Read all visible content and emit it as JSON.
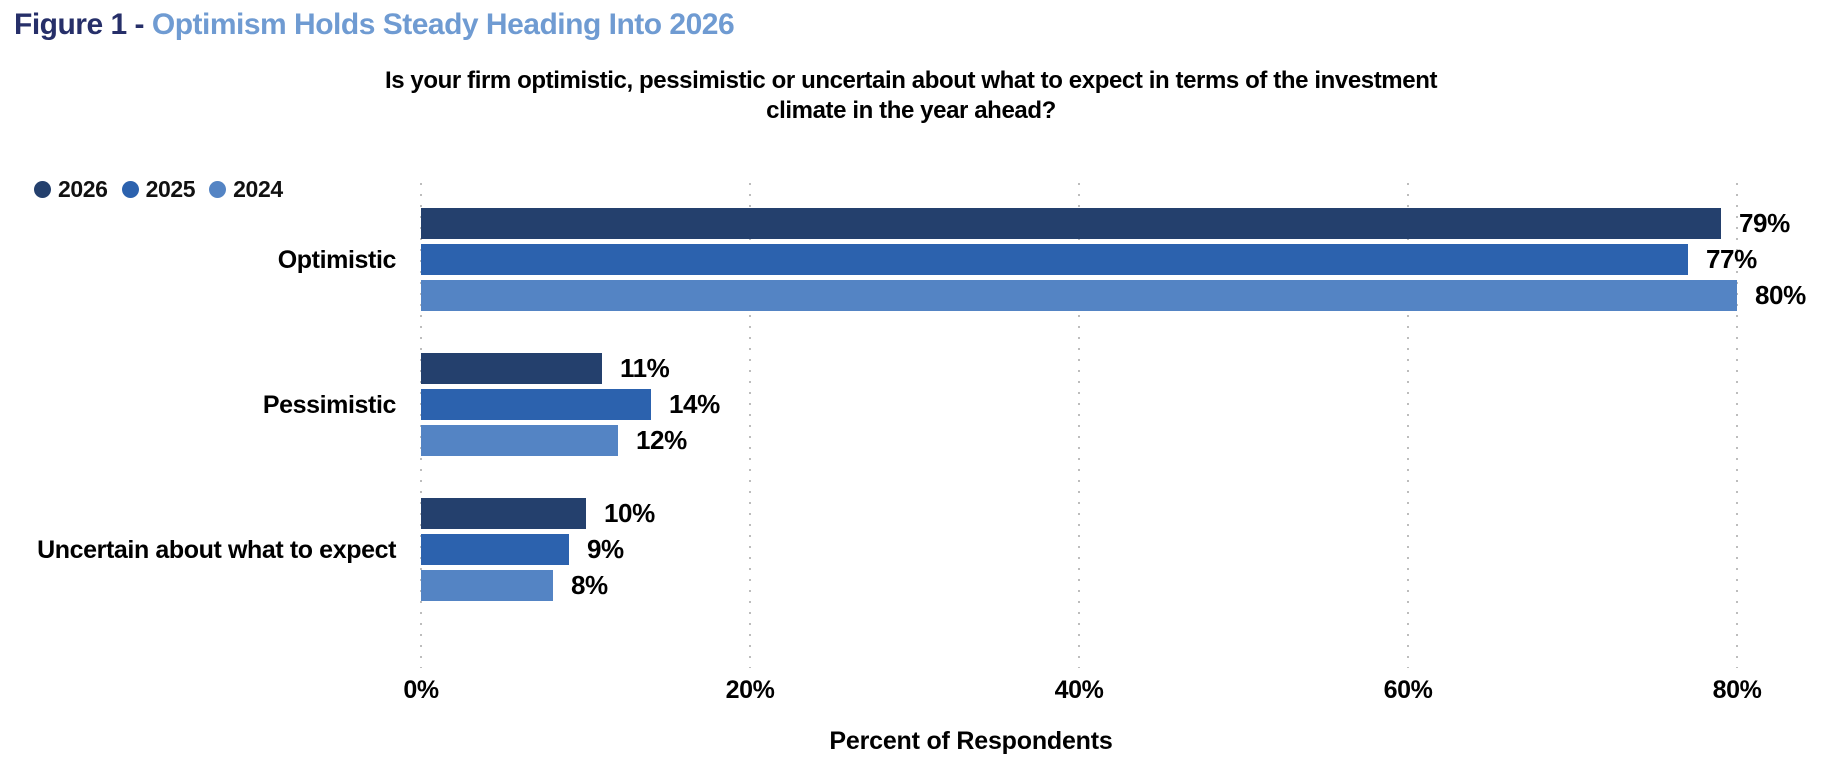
{
  "header": {
    "figure_label": "Figure 1 -",
    "figure_title": "Optimism Holds Steady Heading Into 2026"
  },
  "chart_data": {
    "type": "bar",
    "orientation": "horizontal",
    "title": "Is your firm optimistic, pessimistic or uncertain about what to expect in terms of the investment climate in the year ahead?",
    "title_lines": [
      "Is your firm optimistic, pessimistic or uncertain about what to expect in terms of the investment",
      "climate in the year ahead?"
    ],
    "xlabel": "Percent of Respondents",
    "categories": [
      "Optimistic",
      "Pessimistic",
      "Uncertain about what to expect"
    ],
    "series": [
      {
        "name": "2026",
        "color": "#24406d",
        "values": [
          79,
          11,
          10
        ]
      },
      {
        "name": "2025",
        "color": "#2c62ae",
        "values": [
          77,
          14,
          9
        ]
      },
      {
        "name": "2024",
        "color": "#5484c4",
        "values": [
          80,
          12,
          8
        ]
      }
    ],
    "value_suffix": "%",
    "x_ticks": [
      "0%",
      "20%",
      "40%",
      "60%",
      "80%"
    ],
    "x_tick_values": [
      0,
      20,
      40,
      60,
      80
    ],
    "xlim": [
      0,
      80
    ],
    "grid": "vertical-dotted",
    "legend_position": "top-left"
  },
  "colors": {
    "figure_label": "#262f69",
    "figure_title": "#6f9bd2",
    "text": "#000000",
    "gridline": "#bdbdbd"
  }
}
